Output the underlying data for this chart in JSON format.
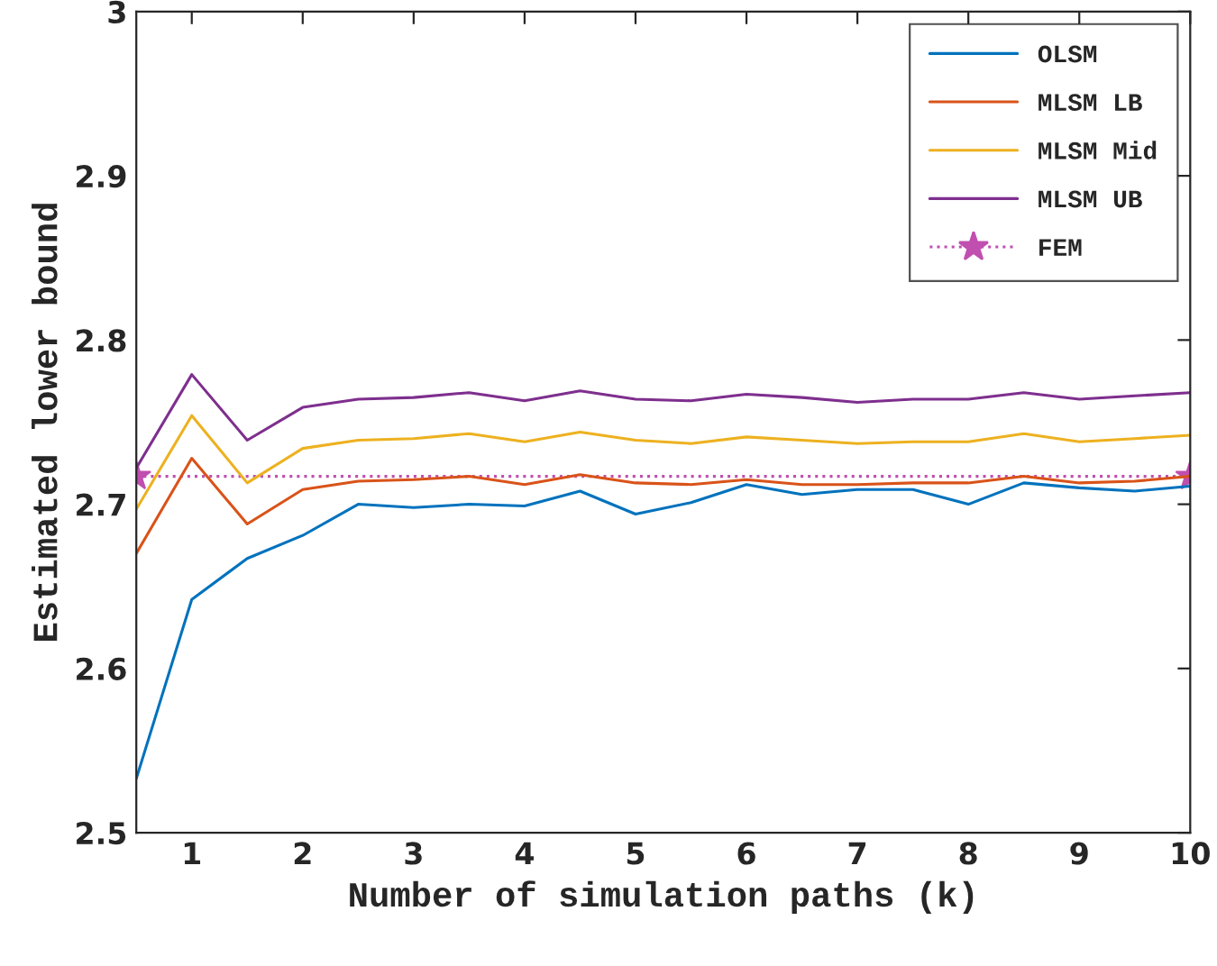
{
  "chart_data": {
    "type": "line",
    "xlabel": "Number of simulation paths (k)",
    "ylabel": "Estimated lower bound",
    "x": [
      0.5,
      1,
      1.5,
      2,
      2.5,
      3,
      3.5,
      4,
      4.5,
      5,
      5.5,
      6,
      6.5,
      7,
      7.5,
      8,
      8.5,
      9,
      9.5,
      10
    ],
    "series": [
      {
        "name": "OLSM",
        "color": "#0072bd",
        "values": [
          2.533,
          2.642,
          2.667,
          2.681,
          2.7,
          2.698,
          2.7,
          2.699,
          2.708,
          2.694,
          2.701,
          2.712,
          2.706,
          2.709,
          2.709,
          2.7,
          2.713,
          2.71,
          2.708,
          2.711
        ]
      },
      {
        "name": "MLSM LB",
        "color": "#d95319",
        "values": [
          2.67,
          2.728,
          2.688,
          2.709,
          2.714,
          2.715,
          2.717,
          2.712,
          2.718,
          2.713,
          2.712,
          2.715,
          2.712,
          2.712,
          2.713,
          2.713,
          2.717,
          2.713,
          2.714,
          2.717
        ]
      },
      {
        "name": "MLSM Mid",
        "color": "#edb120",
        "values": [
          2.697,
          2.754,
          2.713,
          2.734,
          2.739,
          2.74,
          2.743,
          2.738,
          2.744,
          2.739,
          2.737,
          2.741,
          2.739,
          2.737,
          2.738,
          2.738,
          2.743,
          2.738,
          2.74,
          2.742
        ]
      },
      {
        "name": "MLSM UB",
        "color": "#7e2f8e",
        "values": [
          2.722,
          2.779,
          2.739,
          2.759,
          2.764,
          2.765,
          2.768,
          2.763,
          2.769,
          2.764,
          2.763,
          2.767,
          2.765,
          2.762,
          2.764,
          2.764,
          2.768,
          2.764,
          2.766,
          2.768
        ]
      },
      {
        "name": "FEM",
        "color": "#c04fb0",
        "x": [
          0.5,
          10
        ],
        "values": [
          2.717,
          2.717
        ],
        "marker": "star",
        "line_style": "dotted"
      }
    ],
    "xlim": [
      0.5,
      10
    ],
    "xticks": [
      1,
      2,
      3,
      4,
      5,
      6,
      7,
      8,
      9,
      10
    ],
    "ylim": [
      2.5,
      3
    ],
    "yticks": [
      2.5,
      2.6,
      2.7,
      2.8,
      2.9,
      3
    ],
    "grid": false,
    "legend": "top right",
    "marker": "none",
    "line_style": "solid"
  }
}
